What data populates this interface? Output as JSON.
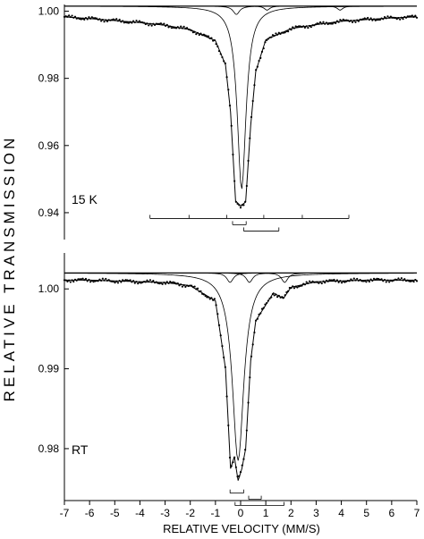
{
  "figure": {
    "ylabel": "RELATIVE TRANSMISSION",
    "xlabel": "RELATIVE VELOCITY (MM/S)"
  },
  "chart_data": [
    {
      "type": "line",
      "panel_label": "15 K",
      "xlim": [
        -7,
        7
      ],
      "ylim": [
        0.932,
        1.002
      ],
      "yticks": [
        1.0,
        0.98,
        0.96,
        0.94
      ],
      "ytick_labels": [
        "1.00",
        "0.98",
        "0.96",
        "0.94"
      ],
      "data_points": {
        "x": [
          -7.0,
          -6.0,
          -5.0,
          -4.0,
          -3.0,
          -2.0,
          -1.0,
          -0.6,
          -0.4,
          -0.2,
          0.0,
          0.2,
          0.4,
          0.6,
          1.0,
          2.0,
          3.0,
          4.0,
          5.0,
          6.0,
          7.0
        ],
        "y": [
          0.9983,
          0.9978,
          0.9972,
          0.9966,
          0.9958,
          0.9945,
          0.9912,
          0.984,
          0.97,
          0.9435,
          0.942,
          0.9432,
          0.966,
          0.982,
          0.9915,
          0.9948,
          0.996,
          0.997,
          0.9975,
          0.998,
          0.9983
        ]
      },
      "fit_components": [
        {
          "center": 0.04,
          "depth": 0.0545,
          "width": 0.42
        },
        {
          "center": -0.17,
          "depth": 0.0025,
          "width": 0.3
        },
        {
          "center": 1.05,
          "depth": 0.0012,
          "width": 0.25
        },
        {
          "center": 3.95,
          "depth": 0.0012,
          "width": 0.25
        }
      ],
      "fit_baseline": 1.0015,
      "stick_diagrams": [
        {
          "positions": [
            -3.6,
            -2.05,
            -0.55,
            0.92,
            2.45,
            4.3
          ]
        },
        {
          "positions": [
            -0.32,
            0.22
          ]
        },
        {
          "positions": [
            0.12,
            1.52
          ]
        }
      ]
    },
    {
      "type": "line",
      "panel_label": "RT",
      "xlim": [
        -7,
        7
      ],
      "ylim": [
        0.9735,
        1.0045
      ],
      "yticks": [
        1.0,
        0.99,
        0.98
      ],
      "ytick_labels": [
        "1.00",
        "0.99",
        "0.98"
      ],
      "data_points": {
        "x": [
          -7.0,
          -6.0,
          -5.0,
          -4.0,
          -3.0,
          -2.0,
          -1.0,
          -0.6,
          -0.4,
          -0.25,
          -0.1,
          0.05,
          0.2,
          0.4,
          0.6,
          1.0,
          1.3,
          1.7,
          2.0,
          3.0,
          4.0,
          5.0,
          6.0,
          7.0
        ],
        "y": [
          1.0011,
          1.0011,
          1.001,
          1.0009,
          1.0008,
          1.0004,
          0.9985,
          0.99,
          0.9775,
          0.979,
          0.976,
          0.9775,
          0.98,
          0.991,
          0.996,
          0.998,
          0.9995,
          0.9988,
          1.0002,
          1.0009,
          1.001,
          1.0011,
          1.0011,
          1.0011
        ]
      },
      "fit_components": [
        {
          "center": -0.1,
          "depth": 0.0235,
          "width": 0.55
        },
        {
          "center": -0.42,
          "depth": 0.0012,
          "width": 0.3
        },
        {
          "center": 0.35,
          "depth": 0.0012,
          "width": 0.3
        },
        {
          "center": 1.75,
          "depth": 0.0012,
          "width": 0.3
        }
      ],
      "fit_baseline": 1.002,
      "stick_diagrams": [
        {
          "positions": [
            -0.42,
            0.12
          ]
        },
        {
          "positions": [
            0.32,
            0.82
          ]
        },
        {
          "positions": [
            -0.22,
            1.72
          ]
        }
      ]
    }
  ],
  "x_axis": {
    "ticks": [
      -7,
      -6,
      -5,
      -4,
      -3,
      -2,
      -1,
      0,
      1,
      2,
      3,
      4,
      5,
      6,
      7
    ],
    "tick_labels": [
      "-7",
      "-6",
      "-5",
      "-4",
      "-3",
      "-2",
      "-1",
      "0",
      "1",
      "2",
      "3",
      "4",
      "5",
      "6",
      "7"
    ]
  }
}
